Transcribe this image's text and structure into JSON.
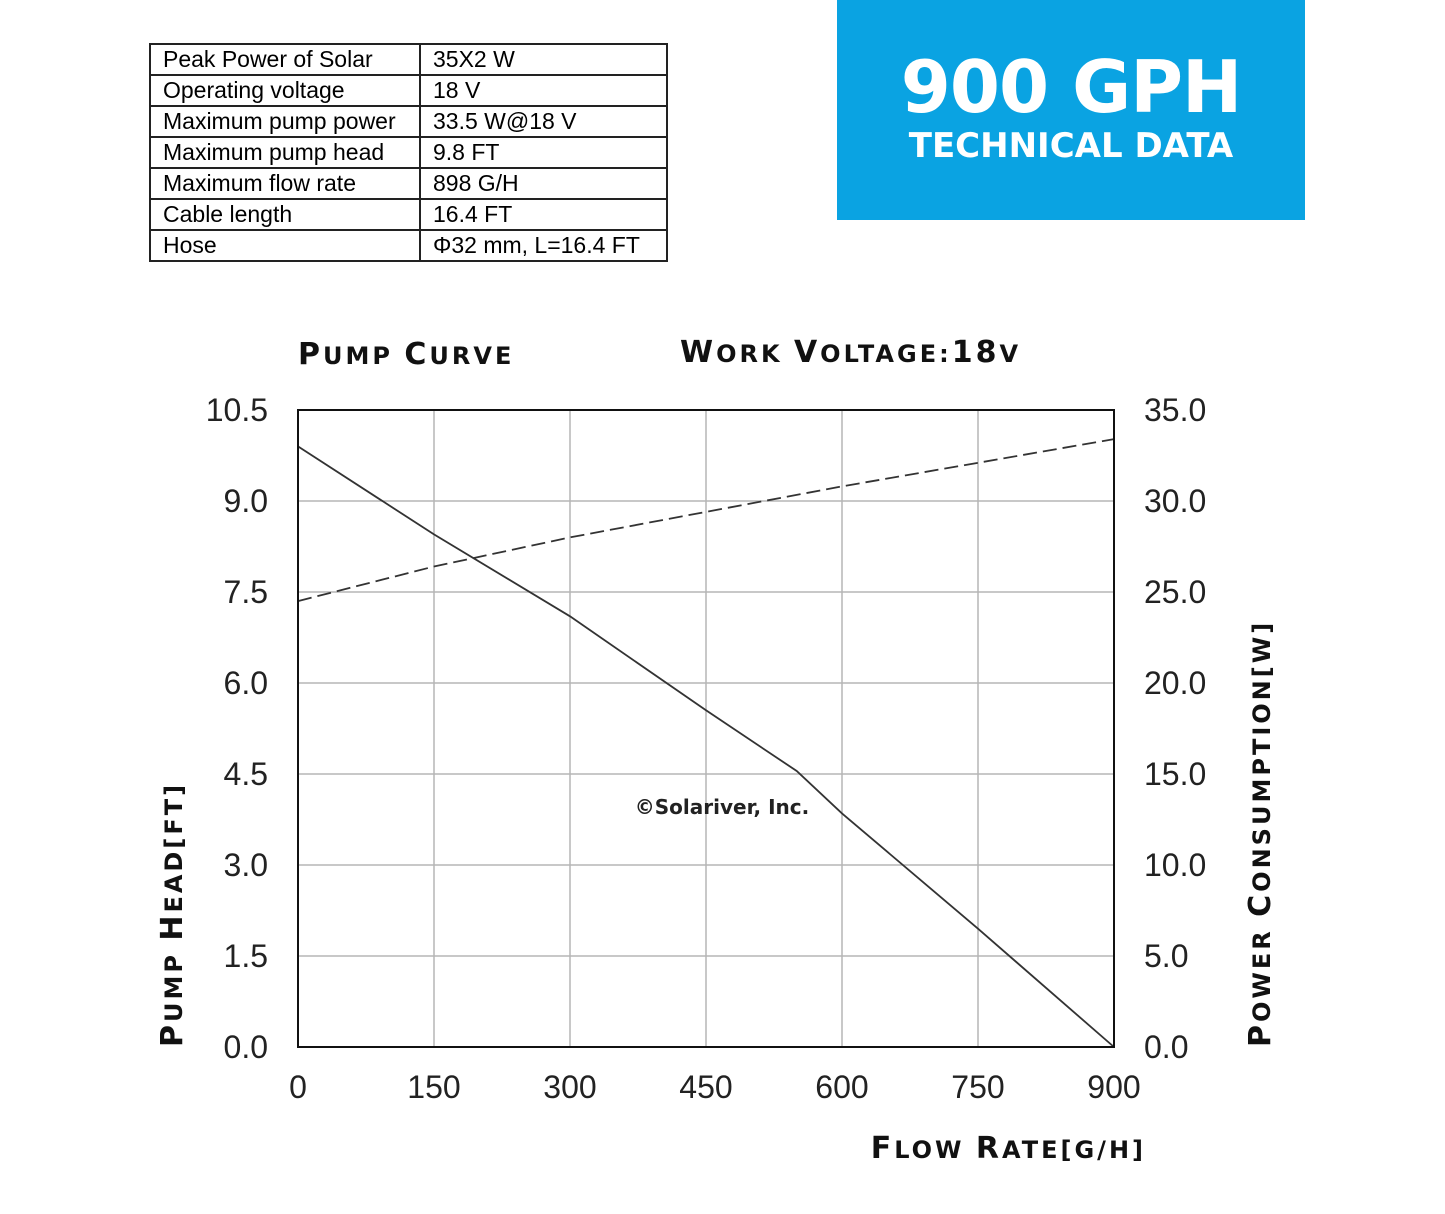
{
  "specs": [
    {
      "label": "Peak Power of Solar",
      "value": "35X2 W"
    },
    {
      "label": "Operating voltage",
      "value": "18 V"
    },
    {
      "label": "Maximum pump power",
      "value": "33.5 W@18 V"
    },
    {
      "label": "Maximum pump head",
      "value": "9.8 FT"
    },
    {
      "label": "Maximum flow rate",
      "value": "898 G/H"
    },
    {
      "label": "Cable length",
      "value": "16.4 FT"
    },
    {
      "label": "Hose",
      "value": "Φ32 mm, L=16.4 FT"
    }
  ],
  "banner": {
    "title": "900 GPH",
    "subtitle": "TECHNICAL DATA",
    "color": "#0aa3e2"
  },
  "chart_data": {
    "type": "line",
    "title": "Pump curve",
    "subtitle": "Work voltage:18V",
    "xlabel": "Flow rate[G/H]",
    "ylabel": "Pump head[FT]",
    "y2label": "Power consumption[W]",
    "xlim": [
      0,
      900
    ],
    "ylim": [
      0,
      10.5
    ],
    "y2lim": [
      0,
      35
    ],
    "grid": true,
    "x_ticks": [
      "0",
      "150",
      "300",
      "450",
      "600",
      "750",
      "900"
    ],
    "y_ticks": [
      "0.0",
      "1.5",
      "3.0",
      "4.5",
      "6.0",
      "7.5",
      "9.0",
      "10.5"
    ],
    "y2_ticks": [
      "0.0",
      "5.0",
      "10.0",
      "15.0",
      "20.0",
      "25.0",
      "30.0",
      "35.0"
    ],
    "watermark": "©Solariver, Inc.",
    "series": [
      {
        "axis": "left",
        "style": "solid",
        "color": "#333333",
        "points": [
          [
            0,
            9.9
          ],
          [
            150,
            8.45
          ],
          [
            300,
            7.1
          ],
          [
            450,
            5.55
          ],
          [
            550,
            4.55
          ],
          [
            600,
            3.85
          ],
          [
            750,
            1.95
          ],
          [
            900,
            0.0
          ]
        ]
      },
      {
        "axis": "right",
        "style": "dashed",
        "color": "#333333",
        "points": [
          [
            0,
            24.5
          ],
          [
            150,
            26.4
          ],
          [
            300,
            28.0
          ],
          [
            450,
            29.4
          ],
          [
            600,
            30.8
          ],
          [
            750,
            32.1
          ],
          [
            900,
            33.4
          ]
        ]
      }
    ]
  }
}
